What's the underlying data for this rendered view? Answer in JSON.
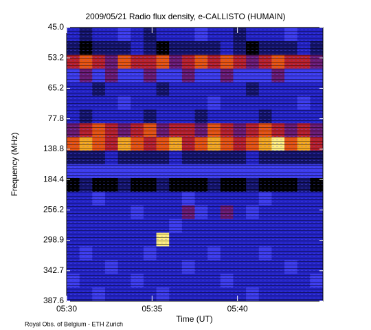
{
  "chart_data": {
    "type": "heatmap",
    "title": "2009/05/21  Radio flux density, e-CALLISTO (HUMAIN)",
    "ylabel": "Frequency (MHz)",
    "xlabel": "Time (UT)",
    "footer": "Royal Obs. of Belgium - ETH Zurich",
    "ytick_labels": [
      "45.0",
      "53.2",
      "65.2",
      "77.8",
      "138.8",
      "184.4",
      "256.2",
      "298.9",
      "342.7",
      "387.6"
    ],
    "xlim": [
      0,
      15
    ],
    "xticks": [
      {
        "value": 0,
        "label": "05:30"
      },
      {
        "value": 5,
        "label": "05:35"
      },
      {
        "value": 10,
        "label": "05:40"
      }
    ],
    "colors": [
      "#000000",
      "#14146a",
      "#2323c4",
      "#3c3cec",
      "#6a1a70",
      "#b8202a",
      "#e85410",
      "#f4a820",
      "#ffee80",
      "#ffffff"
    ],
    "z": [
      [
        2,
        1,
        2,
        2,
        3,
        2,
        1,
        2,
        2,
        2,
        3,
        2,
        2,
        1,
        2,
        2,
        2,
        3,
        2,
        2
      ],
      [
        1,
        0,
        1,
        1,
        1,
        2,
        1,
        0,
        1,
        1,
        1,
        1,
        2,
        1,
        0,
        1,
        1,
        1,
        2,
        1
      ],
      [
        5,
        6,
        5,
        4,
        6,
        5,
        5,
        6,
        4,
        5,
        6,
        5,
        6,
        5,
        4,
        5,
        6,
        5,
        5,
        4
      ],
      [
        3,
        4,
        3,
        4,
        3,
        3,
        4,
        3,
        3,
        4,
        3,
        3,
        4,
        3,
        3,
        3,
        4,
        3,
        3,
        3
      ],
      [
        2,
        2,
        1,
        2,
        2,
        2,
        2,
        1,
        2,
        2,
        2,
        2,
        2,
        2,
        1,
        2,
        2,
        2,
        2,
        2
      ],
      [
        2,
        2,
        2,
        2,
        3,
        2,
        2,
        2,
        2,
        2,
        2,
        3,
        2,
        2,
        2,
        2,
        2,
        2,
        3,
        2
      ],
      [
        2,
        1,
        2,
        2,
        2,
        2,
        1,
        2,
        2,
        2,
        1,
        2,
        2,
        2,
        2,
        1,
        2,
        2,
        2,
        2
      ],
      [
        4,
        5,
        6,
        5,
        4,
        5,
        6,
        4,
        5,
        5,
        4,
        6,
        5,
        4,
        5,
        6,
        5,
        4,
        5,
        4
      ],
      [
        6,
        7,
        6,
        5,
        7,
        6,
        5,
        6,
        7,
        5,
        6,
        7,
        6,
        5,
        6,
        7,
        8,
        6,
        7,
        5
      ],
      [
        1,
        1,
        1,
        2,
        1,
        1,
        1,
        1,
        2,
        1,
        1,
        1,
        1,
        1,
        2,
        1,
        1,
        1,
        1,
        1
      ],
      [
        3,
        3,
        3,
        3,
        3,
        3,
        3,
        3,
        3,
        3,
        3,
        3,
        3,
        3,
        3,
        3,
        3,
        3,
        3,
        3
      ],
      [
        0,
        1,
        0,
        0,
        1,
        0,
        0,
        1,
        0,
        0,
        0,
        1,
        0,
        0,
        1,
        0,
        0,
        0,
        1,
        0
      ],
      [
        2,
        2,
        3,
        2,
        2,
        2,
        2,
        2,
        2,
        3,
        2,
        2,
        2,
        2,
        2,
        3,
        2,
        2,
        2,
        2
      ],
      [
        2,
        2,
        2,
        2,
        2,
        3,
        2,
        2,
        2,
        4,
        3,
        2,
        4,
        2,
        3,
        2,
        2,
        2,
        2,
        2
      ],
      [
        2,
        2,
        2,
        2,
        2,
        2,
        2,
        2,
        3,
        2,
        2,
        2,
        2,
        2,
        2,
        2,
        2,
        2,
        2,
        2
      ],
      [
        2,
        2,
        2,
        2,
        2,
        2,
        2,
        8,
        2,
        2,
        2,
        2,
        2,
        2,
        2,
        2,
        2,
        2,
        2,
        2
      ],
      [
        2,
        3,
        2,
        2,
        2,
        2,
        3,
        2,
        2,
        2,
        2,
        3,
        2,
        2,
        2,
        3,
        2,
        2,
        2,
        2
      ],
      [
        2,
        2,
        2,
        3,
        2,
        2,
        2,
        2,
        2,
        3,
        2,
        2,
        2,
        2,
        2,
        2,
        2,
        3,
        2,
        2
      ],
      [
        3,
        2,
        2,
        2,
        2,
        3,
        2,
        2,
        2,
        2,
        2,
        2,
        3,
        2,
        2,
        2,
        2,
        2,
        2,
        3
      ],
      [
        2,
        2,
        3,
        2,
        2,
        2,
        2,
        3,
        2,
        2,
        2,
        2,
        2,
        2,
        3,
        2,
        2,
        2,
        2,
        2
      ]
    ]
  }
}
